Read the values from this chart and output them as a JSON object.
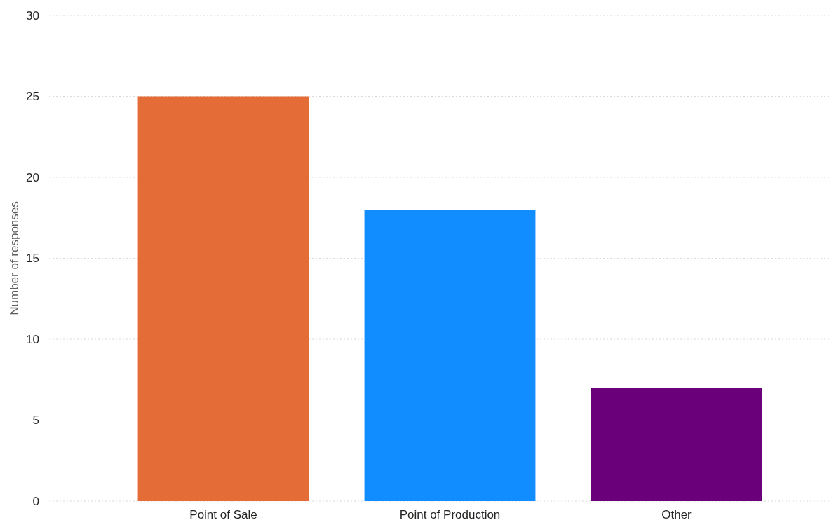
{
  "chart_data": {
    "type": "bar",
    "ylabel": "Number of responses",
    "categories": [
      "Point of Sale",
      "Point of Production",
      "Other"
    ],
    "values": [
      25,
      18,
      7
    ],
    "colors": [
      "#e46c37",
      "#118dff",
      "#6b007b"
    ],
    "ylim": [
      0,
      30
    ],
    "yticks": [
      0,
      5,
      10,
      15,
      20,
      25,
      30
    ],
    "grid": "y"
  }
}
